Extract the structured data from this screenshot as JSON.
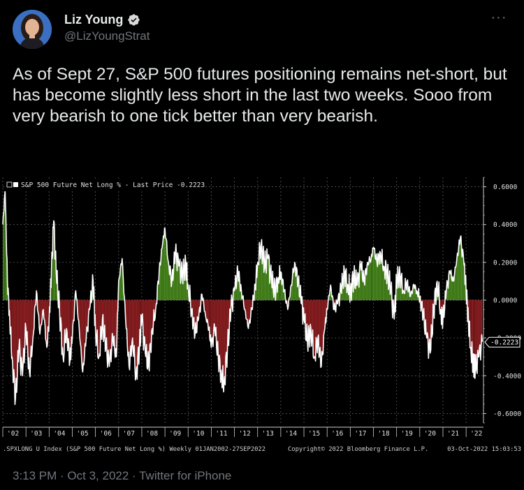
{
  "tweet": {
    "display_name": "Liz Young",
    "handle": "@LizYoungStrat",
    "more_icon": "more-horizontal-icon",
    "verified_icon": "verified-badge-icon",
    "text": "As of Sept 27, S&P 500 futures positioning remains net-short, but has become slightly less short in the last two weeks. Sooo from very bearish to one tick better than very bearish.",
    "timestamp": "3:13 PM · Oct 3, 2022 · Twitter for iPhone"
  },
  "chart_data": {
    "type": "area",
    "legend": "S&P 500 Future Net Long % - Last Price -0.2223",
    "last_price_label": "-0.2223",
    "last_price": -0.2223,
    "ylim": [
      -0.65,
      0.65
    ],
    "y_ticks": [
      0.6,
      0.4,
      0.2,
      0.0,
      -0.2,
      -0.4,
      -0.6
    ],
    "y_tick_labels": [
      "0.6000",
      "0.4000",
      "0.2000",
      "0.0000",
      "-0.2000",
      "-0.4000",
      "-0.6000"
    ],
    "x_tick_labels": [
      "'02",
      "'03",
      "'04",
      "'05",
      "'06",
      "'07",
      "'08",
      "'09",
      "'10",
      "'11",
      "'12",
      "'13",
      "'14",
      "'15",
      "'16",
      "'17",
      "'18",
      "'19",
      "'20",
      "'21",
      "'22"
    ],
    "x_years": [
      2002,
      2003,
      2004,
      2005,
      2006,
      2007,
      2008,
      2009,
      2010,
      2011,
      2012,
      2013,
      2014,
      2015,
      2016,
      2017,
      2018,
      2019,
      2020,
      2021,
      2022
    ],
    "xlim": [
      2002.0,
      2022.75
    ],
    "colors": {
      "positive": "#4a8a1f",
      "negative": "#8e1f22",
      "line": "#ffffff",
      "axis": "#cfcfcf"
    },
    "series": [
      {
        "points": [
          [
            2002.0,
            0.4
          ],
          [
            2002.1,
            0.58
          ],
          [
            2002.2,
            0.1
          ],
          [
            2002.3,
            -0.1
          ],
          [
            2002.4,
            -0.3
          ],
          [
            2002.55,
            -0.52
          ],
          [
            2002.7,
            -0.25
          ],
          [
            2002.85,
            -0.4
          ],
          [
            2003.0,
            -0.15
          ],
          [
            2003.15,
            -0.38
          ],
          [
            2003.3,
            -0.2
          ],
          [
            2003.45,
            0.05
          ],
          [
            2003.6,
            -0.18
          ],
          [
            2003.75,
            -0.05
          ],
          [
            2003.9,
            -0.25
          ],
          [
            2004.0,
            -0.1
          ],
          [
            2004.1,
            0.15
          ],
          [
            2004.2,
            0.42
          ],
          [
            2004.3,
            0.15
          ],
          [
            2004.45,
            -0.05
          ],
          [
            2004.6,
            -0.3
          ],
          [
            2004.75,
            -0.15
          ],
          [
            2004.9,
            -0.32
          ],
          [
            2005.0,
            -0.2
          ],
          [
            2005.15,
            0.05
          ],
          [
            2005.3,
            -0.15
          ],
          [
            2005.45,
            -0.38
          ],
          [
            2005.6,
            -0.2
          ],
          [
            2005.75,
            -0.05
          ],
          [
            2005.9,
            0.1
          ],
          [
            2006.0,
            -0.15
          ],
          [
            2006.15,
            -0.3
          ],
          [
            2006.3,
            -0.1
          ],
          [
            2006.45,
            -0.25
          ],
          [
            2006.6,
            -0.35
          ],
          [
            2006.75,
            -0.2
          ],
          [
            2006.9,
            -0.3
          ],
          [
            2007.0,
            0.1
          ],
          [
            2007.15,
            0.22
          ],
          [
            2007.3,
            -0.1
          ],
          [
            2007.45,
            -0.35
          ],
          [
            2007.6,
            -0.2
          ],
          [
            2007.75,
            -0.4
          ],
          [
            2007.9,
            -0.25
          ],
          [
            2008.0,
            -0.1
          ],
          [
            2008.15,
            -0.28
          ],
          [
            2008.3,
            -0.35
          ],
          [
            2008.45,
            -0.15
          ],
          [
            2008.6,
            -0.05
          ],
          [
            2008.75,
            0.15
          ],
          [
            2008.9,
            0.3
          ],
          [
            2009.0,
            0.38
          ],
          [
            2009.15,
            0.2
          ],
          [
            2009.3,
            0.1
          ],
          [
            2009.45,
            0.25
          ],
          [
            2009.6,
            0.18
          ],
          [
            2009.75,
            0.12
          ],
          [
            2009.9,
            0.2
          ],
          [
            2010.0,
            0.08
          ],
          [
            2010.15,
            -0.05
          ],
          [
            2010.3,
            -0.18
          ],
          [
            2010.45,
            -0.1
          ],
          [
            2010.6,
            0.03
          ],
          [
            2010.75,
            -0.08
          ],
          [
            2010.9,
            -0.15
          ],
          [
            2011.0,
            -0.25
          ],
          [
            2011.15,
            -0.15
          ],
          [
            2011.3,
            -0.3
          ],
          [
            2011.45,
            -0.4
          ],
          [
            2011.55,
            -0.44
          ],
          [
            2011.7,
            -0.25
          ],
          [
            2011.85,
            -0.05
          ],
          [
            2012.0,
            0.05
          ],
          [
            2012.15,
            0.15
          ],
          [
            2012.3,
            0.05
          ],
          [
            2012.45,
            -0.05
          ],
          [
            2012.6,
            -0.15
          ],
          [
            2012.75,
            -0.05
          ],
          [
            2012.9,
            0.08
          ],
          [
            2013.0,
            0.2
          ],
          [
            2013.15,
            0.3
          ],
          [
            2013.3,
            0.18
          ],
          [
            2013.45,
            0.22
          ],
          [
            2013.6,
            0.1
          ],
          [
            2013.75,
            0.05
          ],
          [
            2013.9,
            0.12
          ],
          [
            2014.0,
            0.15
          ],
          [
            2014.15,
            0.05
          ],
          [
            2014.3,
            -0.05
          ],
          [
            2014.45,
            0.08
          ],
          [
            2014.6,
            0.2
          ],
          [
            2014.75,
            0.1
          ],
          [
            2014.9,
            -0.02
          ],
          [
            2015.0,
            -0.1
          ],
          [
            2015.15,
            -0.22
          ],
          [
            2015.3,
            -0.15
          ],
          [
            2015.45,
            -0.3
          ],
          [
            2015.6,
            -0.2
          ],
          [
            2015.75,
            -0.35
          ],
          [
            2015.9,
            -0.15
          ],
          [
            2016.0,
            -0.05
          ],
          [
            2016.15,
            0.08
          ],
          [
            2016.3,
            -0.05
          ],
          [
            2016.45,
            -0.02
          ],
          [
            2016.6,
            0.05
          ],
          [
            2016.75,
            0.15
          ],
          [
            2016.9,
            0.08
          ],
          [
            2017.0,
            0.05
          ],
          [
            2017.15,
            0.12
          ],
          [
            2017.3,
            0.08
          ],
          [
            2017.45,
            0.18
          ],
          [
            2017.6,
            0.1
          ],
          [
            2017.75,
            0.2
          ],
          [
            2017.9,
            0.22
          ],
          [
            2018.0,
            0.28
          ],
          [
            2018.15,
            0.2
          ],
          [
            2018.3,
            0.25
          ],
          [
            2018.45,
            0.18
          ],
          [
            2018.6,
            0.15
          ],
          [
            2018.75,
            0.05
          ],
          [
            2018.9,
            -0.1
          ],
          [
            2019.0,
            0.1
          ],
          [
            2019.15,
            0.14
          ],
          [
            2019.3,
            0.05
          ],
          [
            2019.45,
            0.1
          ],
          [
            2019.6,
            0.02
          ],
          [
            2019.75,
            0.08
          ],
          [
            2019.9,
            0.04
          ],
          [
            2020.0,
            0.02
          ],
          [
            2020.15,
            -0.08
          ],
          [
            2020.3,
            -0.2
          ],
          [
            2020.45,
            -0.28
          ],
          [
            2020.6,
            -0.05
          ],
          [
            2020.75,
            0.1
          ],
          [
            2020.9,
            -0.05
          ],
          [
            2021.0,
            -0.1
          ],
          [
            2021.15,
            0.05
          ],
          [
            2021.3,
            0.15
          ],
          [
            2021.45,
            0.1
          ],
          [
            2021.6,
            0.22
          ],
          [
            2021.75,
            0.33
          ],
          [
            2021.9,
            0.2
          ],
          [
            2022.0,
            0.05
          ],
          [
            2022.1,
            -0.1
          ],
          [
            2022.2,
            -0.25
          ],
          [
            2022.3,
            -0.32
          ],
          [
            2022.4,
            -0.37
          ],
          [
            2022.55,
            -0.3
          ],
          [
            2022.7,
            -0.22
          ]
        ]
      }
    ],
    "footer_left": ".SPXLONG U Index (S&P 500 Future Net Long %)  Weekly 01JAN2002-27SEP2022",
    "footer_center": "Copyright© 2022 Bloomberg Finance L.P.",
    "footer_right": "03-Oct-2022 15:03:53"
  }
}
